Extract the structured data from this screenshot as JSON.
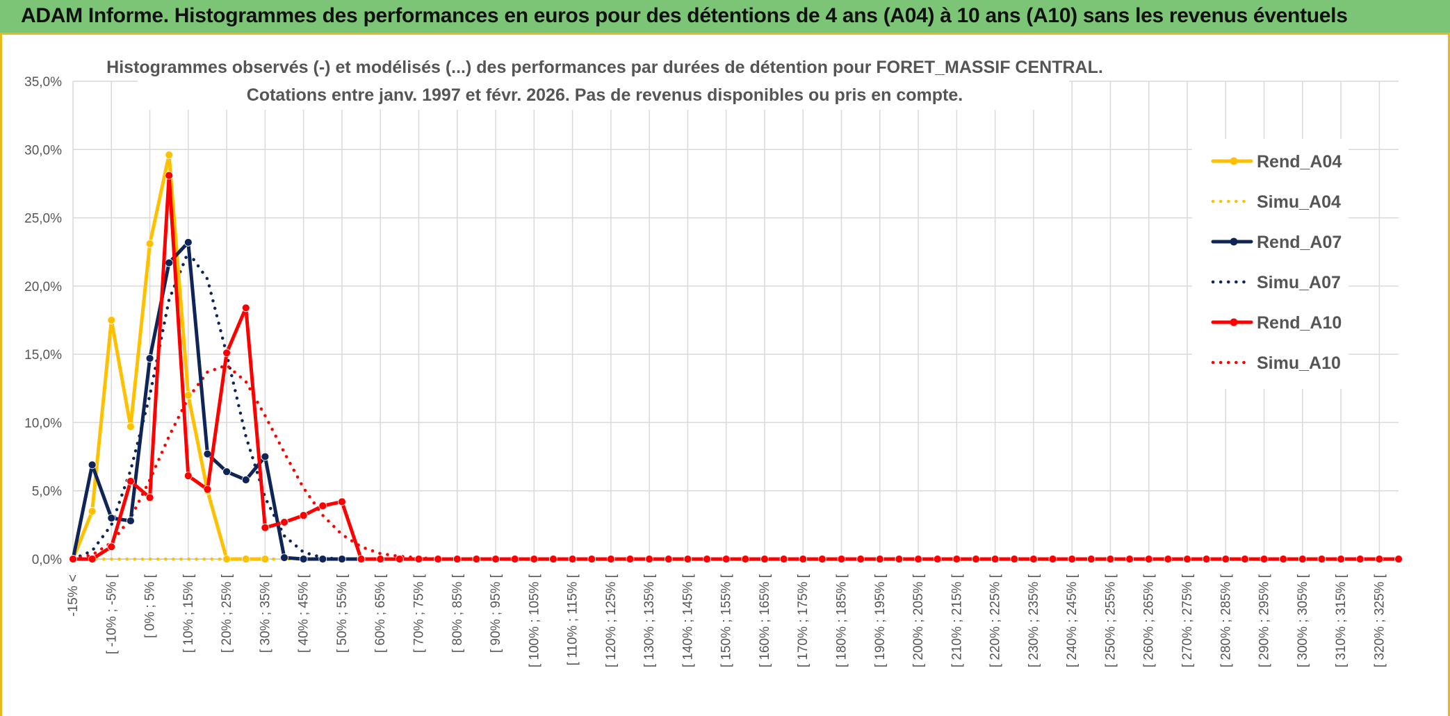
{
  "header": {
    "title": "ADAM Informe. Histogrammes des performances en euros pour des détentions de 4 ans (A04) à 10 ans (A10) sans les revenus éventuels"
  },
  "colors": {
    "banner": "#7cc576",
    "frame": "#e8b91a",
    "A04": "#ffc000",
    "A07": "#0f2557",
    "A10": "#ff0000",
    "grid": "#d9d9d9"
  },
  "chart_data": {
    "type": "line",
    "title": "Histogrammes observés (-) et modélisés (...) des performances par durées de détention pour FORET_MASSIF CENTRAL.",
    "subtitle": "Cotations entre janv. 1997 et févr. 2026. Pas de revenus disponibles ou pris en compte.",
    "ylim": [
      0,
      35
    ],
    "yticks": [
      0,
      5,
      10,
      15,
      20,
      25,
      30,
      35
    ],
    "ytick_labels": [
      "0,0%",
      "5,0%",
      "10,0%",
      "15,0%",
      "20,0%",
      "25,0%",
      "30,0%",
      "35,0%"
    ],
    "grid": true,
    "legend_position": "right",
    "n_points": 70,
    "x_labels": [
      "-15% <",
      "[ -10% ; -5% [",
      "[ 0% ; 5% [",
      "[ 10% ; 15% [",
      "[ 20% ; 25% [",
      "[ 30% ; 35% [",
      "[ 40% ; 45% [",
      "[ 50% ; 55% [",
      "[ 60% ; 65% [",
      "[ 70% ; 75% [",
      "[ 80% ; 85% [",
      "[ 90% ; 95% [",
      "[ 100% ; 105% [",
      "[ 110% ; 115% [",
      "[ 120% ; 125% [",
      "[ 130% ; 135% [",
      "[ 140% ; 145% [",
      "[ 150% ; 155% [",
      "[ 160% ; 165% [",
      "[ 170% ; 175% [",
      "[ 180% ; 185% [",
      "[ 190% ; 195% [",
      "[ 200% ; 205% [",
      "[ 210% ; 215% [",
      "[ 220% ; 225% [",
      "[ 230% ; 235% [",
      "[ 240% ; 245% [",
      "[ 250% ; 255% [",
      "[ 260% ; 265% [",
      "[ 270% ; 275% [",
      "[ 280% ; 285% [",
      "[ 290% ; 295% [",
      "[ 300% ; 305% [",
      "[ 310% ; 315% [",
      "[ 320% ; 325% ["
    ],
    "series": [
      {
        "name": "Rend_A04",
        "color": "#ffc000",
        "style": "solid",
        "values": [
          0,
          3.5,
          17.5,
          9.7,
          23.1,
          29.6,
          12,
          5,
          0,
          0,
          0
        ]
      },
      {
        "name": "Simu_A04",
        "color": "#ffc000",
        "style": "dotted",
        "values": [
          0,
          0,
          0,
          0,
          0,
          0,
          0,
          0,
          0,
          0,
          0,
          0,
          0,
          0,
          0,
          0
        ]
      },
      {
        "name": "Rend_A07",
        "color": "#0f2557",
        "style": "solid",
        "values": [
          0,
          6.9,
          3,
          2.8,
          14.7,
          21.7,
          23.2,
          7.7,
          6.4,
          5.8,
          7.5,
          0.1,
          0,
          0,
          0,
          0,
          0
        ]
      },
      {
        "name": "Simu_A07",
        "color": "#0f2557",
        "style": "dotted",
        "values": [
          0,
          0.6,
          2.5,
          6.5,
          12,
          19,
          22.5,
          20.5,
          15,
          9,
          4.5,
          1.7,
          0.5,
          0.1,
          0
        ]
      },
      {
        "name": "Rend_A10",
        "color": "#ff0000",
        "style": "solid",
        "values": [
          0,
          0,
          0.9,
          5.7,
          4.5,
          28.1,
          6.1,
          5.1,
          15.1,
          18.4,
          2.3,
          2.7,
          3.2,
          3.9,
          4.2,
          0,
          0,
          0,
          0,
          0,
          0,
          0,
          0,
          0,
          0,
          0,
          0,
          0,
          0,
          0,
          0,
          0,
          0,
          0,
          0,
          0,
          0,
          0,
          0,
          0,
          0,
          0,
          0,
          0,
          0,
          0,
          0,
          0,
          0,
          0,
          0,
          0,
          0,
          0,
          0,
          0,
          0,
          0,
          0,
          0,
          0,
          0,
          0,
          0,
          0,
          0,
          0,
          0,
          0,
          0
        ]
      },
      {
        "name": "Simu_A10",
        "color": "#ff0000",
        "style": "dotted",
        "values": [
          0,
          0.3,
          1.2,
          3,
          5.8,
          9,
          11.8,
          13.7,
          14.2,
          13,
          10.5,
          7.8,
          5.2,
          3.2,
          1.8,
          0.9,
          0.4,
          0.2,
          0.1,
          0
        ]
      }
    ]
  }
}
